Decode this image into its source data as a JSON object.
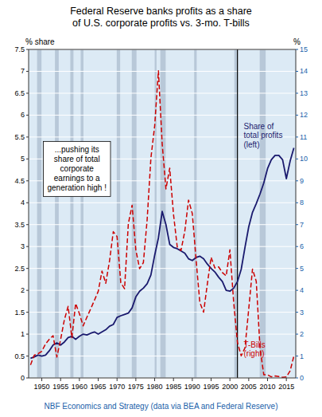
{
  "chart_data": {
    "type": "line",
    "title": "Federal Reserve banks profits as a share\nof U.S. corporate profits vs. 3-mo. T-bills",
    "footer": "NBF Economics and Strategy (data via BEA and Federal Reserve)",
    "ylabel": "% share",
    "y2label": "%",
    "annotations": [
      {
        "text": "...pushing its\nshare of total\ncorporate\nearnings to a\ngeneration high !"
      }
    ],
    "xlim": [
      1946.5,
      2017.5
    ],
    "xticks": [
      1950,
      1955,
      1960,
      1965,
      1970,
      1975,
      1980,
      1985,
      1990,
      1995,
      2000,
      2005,
      2010,
      2015
    ],
    "ylim": [
      0,
      7.5
    ],
    "yticks": [
      0,
      0.5,
      1,
      1.5,
      2,
      2.5,
      3,
      3.5,
      4,
      4.5,
      5,
      5.5,
      6,
      6.5,
      7,
      7.5
    ],
    "y2lim": [
      0,
      15
    ],
    "y2ticks": [
      0,
      1,
      2,
      3,
      4,
      5,
      6,
      7,
      8,
      9,
      10,
      11,
      12,
      13,
      14,
      15
    ],
    "grid": true,
    "recession_bands": [
      [
        1948.75,
        1949.92
      ],
      [
        1953.5,
        1954.5
      ],
      [
        1957.58,
        1958.42
      ],
      [
        1960.33,
        1961.08
      ],
      [
        1969.92,
        1970.83
      ],
      [
        1973.92,
        1975.17
      ],
      [
        1980.0,
        1980.5
      ],
      [
        1981.5,
        1982.92
      ],
      [
        1990.5,
        1991.17
      ],
      [
        2001.17,
        2001.92
      ],
      [
        2007.92,
        2009.5
      ]
    ],
    "vertical_lines": [
      2002.0
    ],
    "x": [
      1947,
      1948,
      1949,
      1950,
      1951,
      1952,
      1953,
      1954,
      1955,
      1956,
      1957,
      1958,
      1959,
      1960,
      1961,
      1962,
      1963,
      1964,
      1965,
      1966,
      1967,
      1968,
      1969,
      1970,
      1971,
      1972,
      1973,
      1974,
      1975,
      1976,
      1977,
      1978,
      1979,
      1980,
      1981,
      1982,
      1983,
      1984,
      1985,
      1986,
      1987,
      1988,
      1989,
      1990,
      1991,
      1992,
      1993,
      1994,
      1995,
      1996,
      1997,
      1998,
      1999,
      2000,
      2001,
      2002,
      2003,
      2004,
      2005,
      2006,
      2007,
      2008,
      2009,
      2010,
      2011,
      2012,
      2013,
      2014,
      2015,
      2016,
      2017
    ],
    "series": [
      {
        "name": "Share of\ntotal profits\n(left)",
        "color": "#1a1a6e",
        "line_style": "solid",
        "values": [
          0.45,
          0.48,
          0.52,
          0.5,
          0.52,
          0.62,
          0.75,
          0.8,
          0.75,
          0.82,
          0.92,
          0.95,
          0.88,
          0.95,
          1.0,
          0.98,
          1.02,
          1.05,
          1.0,
          1.05,
          1.1,
          1.18,
          1.22,
          1.38,
          1.42,
          1.45,
          1.48,
          1.6,
          1.85,
          1.98,
          2.05,
          2.15,
          2.35,
          2.8,
          3.2,
          3.8,
          3.5,
          3.05,
          2.98,
          2.95,
          2.9,
          2.85,
          2.72,
          2.68,
          2.75,
          2.78,
          2.72,
          2.6,
          2.5,
          2.42,
          2.3,
          2.2,
          2.0,
          1.98,
          2.05,
          2.2,
          2.48,
          2.98,
          3.45,
          3.78,
          3.98,
          4.2,
          4.45,
          4.78,
          4.98,
          5.08,
          5.08,
          4.98,
          4.55,
          4.95,
          5.25
        ]
      },
      {
        "name": "T-Bills\n(right)",
        "color": "#CC0000",
        "line_style": "dashed",
        "axis": "y2",
        "values": [
          0.594,
          1.04,
          1.102,
          1.218,
          1.552,
          1.766,
          1.931,
          0.953,
          1.753,
          2.658,
          3.267,
          1.839,
          3.405,
          2.928,
          2.378,
          2.778,
          3.157,
          3.549,
          3.954,
          4.881,
          4.321,
          5.339,
          6.677,
          6.458,
          4.348,
          4.071,
          7.041,
          7.886,
          5.838,
          4.989,
          5.265,
          7.221,
          10.041,
          11.506,
          14.029,
          10.686,
          8.63,
          9.58,
          7.48,
          5.98,
          5.82,
          6.69,
          8.12,
          7.51,
          5.42,
          3.45,
          3.0,
          4.29,
          5.51,
          5.02,
          5.07,
          4.81,
          4.66,
          5.85,
          3.45,
          1.62,
          1.01,
          1.37,
          3.15,
          4.97,
          4.41,
          1.37,
          0.15,
          0.14,
          0.05,
          0.09,
          0.06,
          0.03,
          0.05,
          0.32,
          1.0
        ]
      }
    ]
  }
}
